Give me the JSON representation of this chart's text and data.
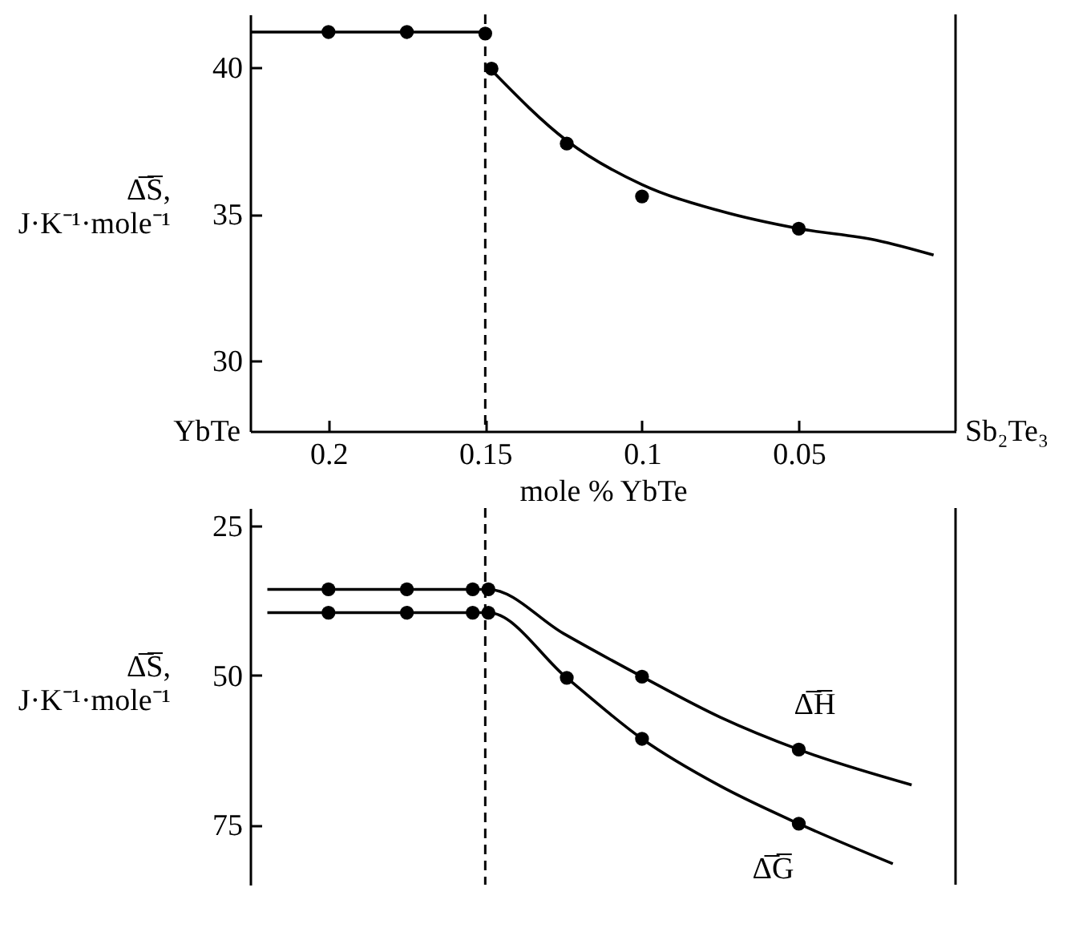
{
  "chart_data": [
    {
      "type": "scatter",
      "xlabel": "mole % YbTe",
      "ylabel": "Δ̅S̅,\nJ·K⁻¹·mole⁻¹",
      "xlim": [
        0.225,
        0
      ],
      "xticks": [
        0.2,
        0.15,
        0.1,
        0.05
      ],
      "ylim": [
        27.6,
        41.8
      ],
      "yticks": [
        30,
        35,
        40
      ],
      "series": [
        {
          "marker": "circle",
          "color": "#000000",
          "x": [
            0.2,
            0.175,
            0.15,
            0.148,
            0.124,
            0.1,
            0.05
          ],
          "values": [
            41.2,
            41.2,
            41.15,
            39.95,
            37.4,
            35.6,
            34.5
          ]
        },
        {
          "type": "line",
          "color": "#000000",
          "x": [
            0.225,
            0.15
          ],
          "values": [
            41.2,
            41.2
          ]
        },
        {
          "type": "line",
          "color": "#000000",
          "x": [
            0.148,
            0.124,
            0.1,
            0.075,
            0.05,
            0.025,
            0.007
          ],
          "values": [
            39.9,
            37.5,
            36.0,
            35.1,
            34.5,
            34.1,
            33.6
          ]
        }
      ],
      "ref_lines": [
        {
          "axis": "x",
          "value": 0.15,
          "line_style": "dashed"
        }
      ],
      "annotations": [
        "YbTe",
        "Sb₂Te₃"
      ]
    },
    {
      "type": "scatter",
      "ylabel": "Δ̅S̅,\nJ·K⁻¹·mole⁻¹",
      "xlim": [
        0.225,
        0
      ],
      "ylim": [
        85,
        22
      ],
      "yticks": [
        25,
        50,
        75
      ],
      "tick_labels": "y",
      "series": [
        {
          "marker": "circle",
          "color": "#000000",
          "x": [
            0.2,
            0.175,
            0.154,
            0.149,
            0.1,
            0.05
          ],
          "values": [
            35.6,
            35.6,
            35.6,
            35.6,
            50.2,
            62.4
          ]
        },
        {
          "type": "line",
          "name": "Δ̅H̅",
          "color": "#000000",
          "x": [
            0.2195,
            0.149,
            0.125,
            0.1,
            0.075,
            0.05,
            0.014
          ],
          "values": [
            35.6,
            35.6,
            43,
            50.2,
            57,
            62.4,
            68.3
          ]
        },
        {
          "marker": "circle",
          "color": "#000000",
          "x": [
            0.2,
            0.175,
            0.154,
            0.149,
            0.124,
            0.1,
            0.05
          ],
          "values": [
            39.5,
            39.5,
            39.5,
            39.5,
            50.4,
            60.6,
            74.8
          ]
        },
        {
          "type": "line",
          "name": "Δ̅G̅",
          "color": "#000000",
          "x": [
            0.2195,
            0.149,
            0.124,
            0.1,
            0.075,
            0.05,
            0.02
          ],
          "values": [
            39.5,
            39.5,
            50.4,
            60.6,
            68.5,
            74.8,
            81.5
          ]
        }
      ],
      "ref_lines": [
        {
          "axis": "x",
          "value": 0.15,
          "line_style": "dashed"
        }
      ]
    }
  ]
}
